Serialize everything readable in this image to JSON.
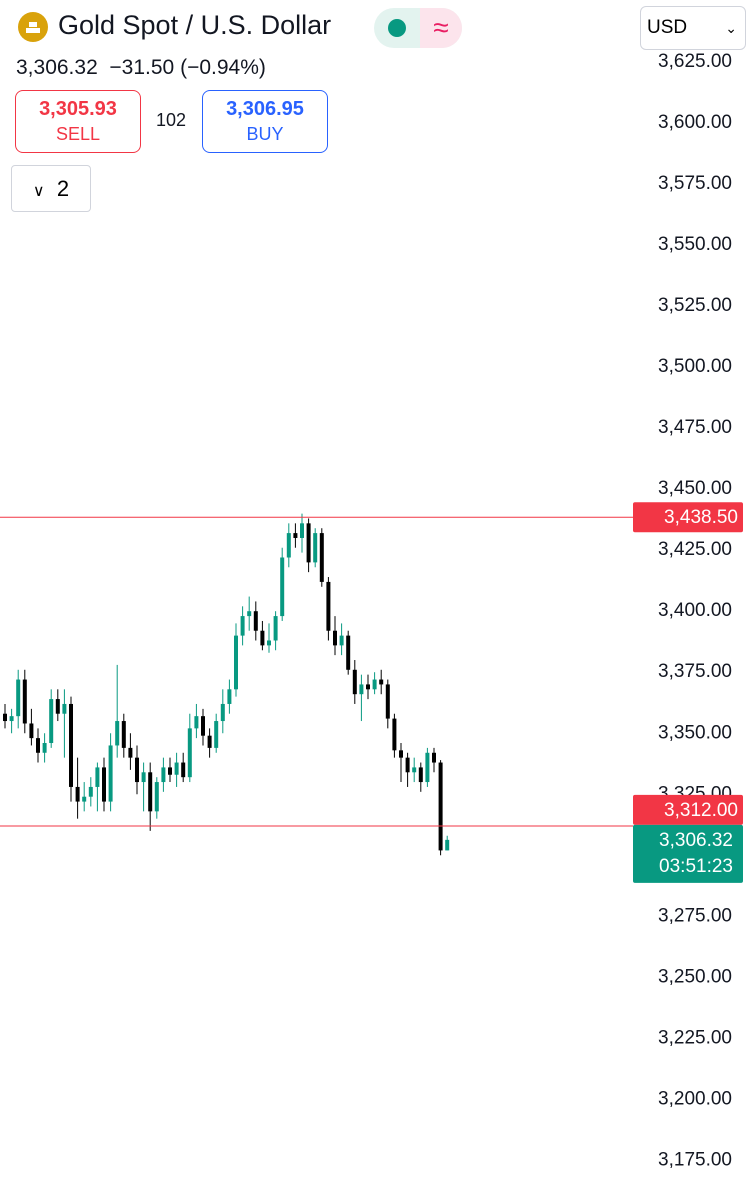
{
  "header": {
    "title": "Gold Spot / U.S. Dollar",
    "price": "3,306.32",
    "change": "−31.50 (−0.94%)",
    "sell_price": "3,305.93",
    "sell_label": "SELL",
    "spread": "102",
    "buy_price": "3,306.95",
    "buy_label": "BUY",
    "indicators_count": "2",
    "currency": "USD"
  },
  "chart_data": {
    "type": "candlestick",
    "open": [
      3358,
      3355,
      3357,
      3372,
      3354,
      3348,
      3342,
      3346,
      3364,
      3358,
      3362,
      3328,
      3322,
      3324,
      3328,
      3336,
      3322,
      3345,
      3355,
      3344,
      3340,
      3330,
      3334,
      3318,
      3330,
      3336,
      3333,
      3338,
      3332,
      3352,
      3357,
      3349,
      3344,
      3355,
      3362,
      3368,
      3390,
      3398,
      3400,
      3392,
      3386,
      3388,
      3398,
      3422,
      3432,
      3430,
      3436,
      3420,
      3432,
      3412,
      3392,
      3386,
      3390,
      3376,
      3366,
      3370,
      3368,
      3372,
      3370,
      3356,
      3343,
      3340,
      3334,
      3336,
      3330,
      3342,
      3338,
      3302
    ],
    "high": [
      3362,
      3360,
      3376,
      3376,
      3360,
      3352,
      3350,
      3368,
      3368,
      3368,
      3365,
      3340,
      3330,
      3332,
      3338,
      3340,
      3350,
      3378,
      3358,
      3350,
      3345,
      3338,
      3338,
      3332,
      3340,
      3340,
      3342,
      3342,
      3358,
      3362,
      3360,
      3352,
      3358,
      3368,
      3372,
      3395,
      3402,
      3406,
      3404,
      3396,
      3395,
      3400,
      3426,
      3436,
      3436,
      3440,
      3438,
      3434,
      3434,
      3414,
      3398,
      3395,
      3392,
      3380,
      3374,
      3374,
      3375,
      3376,
      3372,
      3358,
      3346,
      3342,
      3340,
      3338,
      3344,
      3344,
      3339,
      3308
    ],
    "low": [
      3352,
      3350,
      3352,
      3350,
      3345,
      3338,
      3338,
      3344,
      3355,
      3340,
      3322,
      3315,
      3318,
      3320,
      3318,
      3318,
      3318,
      3340,
      3340,
      3335,
      3325,
      3318,
      3310,
      3315,
      3326,
      3330,
      3328,
      3330,
      3330,
      3348,
      3345,
      3340,
      3342,
      3350,
      3358,
      3365,
      3386,
      3392,
      3388,
      3384,
      3383,
      3384,
      3396,
      3418,
      3426,
      3424,
      3416,
      3418,
      3410,
      3388,
      3382,
      3382,
      3374,
      3362,
      3355,
      3364,
      3366,
      3366,
      3352,
      3340,
      3330,
      3328,
      3330,
      3326,
      3328,
      3334,
      3300,
      3302
    ],
    "close": [
      3355,
      3357,
      3372,
      3354,
      3348,
      3342,
      3346,
      3364,
      3358,
      3362,
      3328,
      3322,
      3324,
      3328,
      3336,
      3322,
      3345,
      3355,
      3344,
      3340,
      3330,
      3334,
      3318,
      3330,
      3336,
      3333,
      3338,
      3332,
      3352,
      3357,
      3349,
      3344,
      3355,
      3362,
      3368,
      3390,
      3398,
      3400,
      3392,
      3386,
      3388,
      3398,
      3422,
      3432,
      3430,
      3436,
      3420,
      3432,
      3412,
      3392,
      3386,
      3390,
      3376,
      3366,
      3370,
      3368,
      3372,
      3370,
      3356,
      3343,
      3340,
      3334,
      3336,
      3330,
      3342,
      3338,
      3302,
      3306.32
    ],
    "up_color": "#089981",
    "down_color": "#000000",
    "ylim": [
      3160,
      3650
    ],
    "yticks": [
      {
        "value": 3175,
        "label": "3,175.00"
      },
      {
        "value": 3200,
        "label": "3,200.00"
      },
      {
        "value": 3225,
        "label": "3,225.00"
      },
      {
        "value": 3250,
        "label": "3,250.00"
      },
      {
        "value": 3275,
        "label": "3,275.00"
      },
      {
        "value": 3325,
        "label": "3,325.00"
      },
      {
        "value": 3350,
        "label": "3,350.00"
      },
      {
        "value": 3375,
        "label": "3,375.00"
      },
      {
        "value": 3400,
        "label": "3,400.00"
      },
      {
        "value": 3425,
        "label": "3,425.00"
      },
      {
        "value": 3450,
        "label": "3,450.00"
      },
      {
        "value": 3475,
        "label": "3,475.00"
      },
      {
        "value": 3500,
        "label": "3,500.00"
      },
      {
        "value": 3525,
        "label": "3,525.00"
      },
      {
        "value": 3550,
        "label": "3,550.00"
      },
      {
        "value": 3575,
        "label": "3,575.00"
      },
      {
        "value": 3600,
        "label": "3,600.00"
      },
      {
        "value": 3625,
        "label": "3,625.00"
      }
    ],
    "price_lines": [
      {
        "value": 3438.5,
        "label": "3,438.50",
        "color": "#f23645"
      },
      {
        "value": 3312,
        "label": "3,312.00",
        "color": "#f23645"
      }
    ],
    "last_price": {
      "value": 3306.32,
      "label": "3,306.32",
      "countdown": "03:51:23",
      "color": "#089981"
    }
  }
}
